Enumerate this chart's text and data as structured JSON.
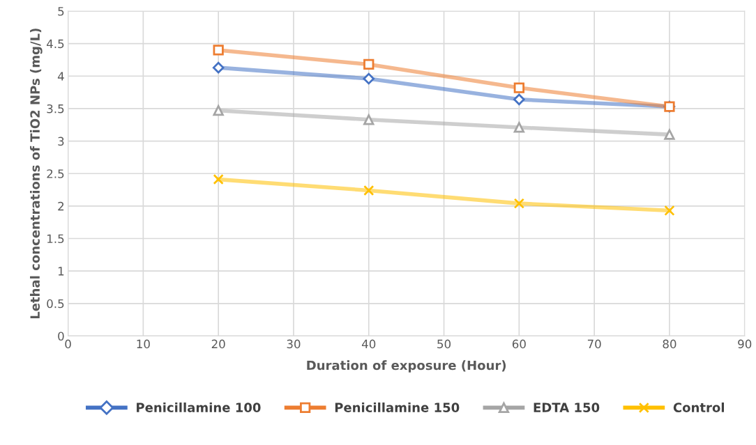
{
  "chart_data": {
    "type": "line",
    "xlabel": "Duration of exposure (Hour)",
    "ylabel": "Lethal concentrations of TiO2 NPs (mg/L)",
    "x": [
      20,
      40,
      60,
      80
    ],
    "series": [
      {
        "name": "Penicillamine 100",
        "color": "#4472c4",
        "marker": "diamond",
        "values": [
          4.13,
          3.96,
          3.64,
          3.53
        ]
      },
      {
        "name": "Penicillamine 150",
        "color": "#ed7d31",
        "marker": "square",
        "values": [
          4.4,
          4.18,
          3.82,
          3.53
        ]
      },
      {
        "name": "EDTA 150",
        "color": "#a5a5a5",
        "marker": "triangle",
        "values": [
          3.47,
          3.33,
          3.21,
          3.1
        ]
      },
      {
        "name": "Control",
        "color": "#ffc000",
        "marker": "cross",
        "values": [
          2.41,
          2.24,
          2.04,
          1.93
        ]
      }
    ],
    "xlim": [
      0,
      90
    ],
    "xticks": [
      0,
      10,
      20,
      30,
      40,
      50,
      60,
      70,
      80,
      90
    ],
    "ylim": [
      0,
      5
    ],
    "yticks": [
      0,
      0.5,
      1,
      1.5,
      2,
      2.5,
      3,
      3.5,
      4,
      4.5,
      5
    ],
    "grid": true,
    "legend": "bottom"
  }
}
